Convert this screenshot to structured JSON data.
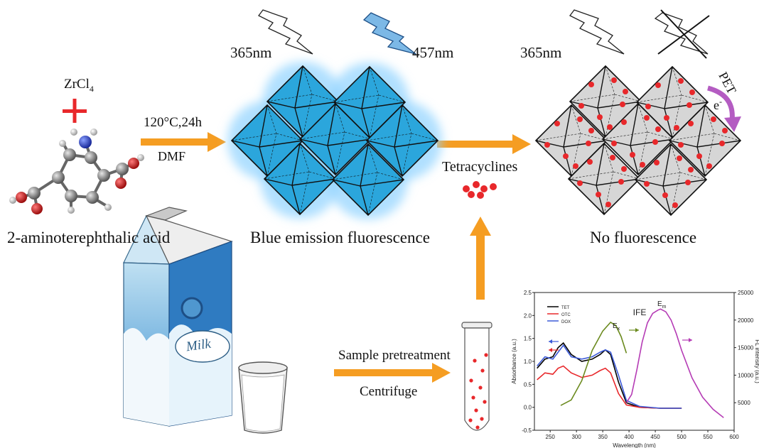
{
  "synthesis": {
    "reagent": "ZrCl",
    "reagent_sub": "4",
    "ligand_label": "2-aminoterephthalic acid",
    "condition": "120°C,24h",
    "solvent": "DMF"
  },
  "mof": {
    "excitation_left": "365nm",
    "emission": "457nm",
    "caption": "Blue emission fluorescence",
    "color": "#2ba6dc"
  },
  "analyte": {
    "label": "Tetracyclines",
    "color": "#e8282b"
  },
  "quenched": {
    "excitation": "365nm",
    "caption": "No fluorescence",
    "pet_label": "PET",
    "electron_label": "e",
    "electron_sup": "-",
    "color": "#d6d6d6"
  },
  "sample": {
    "milk_label": "Milk",
    "step1": "Sample pretreatment",
    "step2": "Centrifuge"
  },
  "chart_data": {
    "type": "line",
    "title": "IFE",
    "xlabel": "Wavelength (nm)",
    "ylabel_left": "Absorbance (a.u.)",
    "ylabel_right": "FL intensity (a.u.)",
    "xlim": [
      220,
      600
    ],
    "ylim_left": [
      -0.5,
      2.5
    ],
    "ylim_right": [
      0,
      25000
    ],
    "x_ticks": [
      "250",
      "300",
      "350",
      "400",
      "450",
      "500",
      "550",
      "600"
    ],
    "y_ticks_left": [
      "-0.5",
      "0.0",
      "0.5",
      "1.0",
      "1.5",
      "2.0",
      "2.5"
    ],
    "y_ticks_right": [
      "5000",
      "10000",
      "15000",
      "20000",
      "25000"
    ],
    "annotations": {
      "ex": "E",
      "ex_sub": "x",
      "em": "E",
      "em_sub": "m"
    },
    "legend_position": "top-left",
    "series": [
      {
        "name": "TET",
        "color": "#000000",
        "axis": "left",
        "x": [
          225,
          240,
          255,
          265,
          275,
          290,
          310,
          330,
          345,
          355,
          365,
          380,
          395,
          420,
          460,
          500
        ],
        "y": [
          0.85,
          1.05,
          1.1,
          1.3,
          1.4,
          1.15,
          1.0,
          1.05,
          1.15,
          1.25,
          1.15,
          0.55,
          0.1,
          0.0,
          -0.02,
          -0.02
        ]
      },
      {
        "name": "OTC",
        "color": "#e8282b",
        "axis": "left",
        "x": [
          225,
          240,
          255,
          265,
          275,
          290,
          310,
          330,
          345,
          355,
          365,
          380,
          395,
          420,
          460,
          500
        ],
        "y": [
          0.6,
          0.75,
          0.72,
          0.85,
          0.9,
          0.75,
          0.65,
          0.7,
          0.8,
          0.85,
          0.75,
          0.3,
          0.05,
          0.0,
          -0.02,
          -0.02
        ]
      },
      {
        "name": "DOX",
        "color": "#3c5ad8",
        "axis": "left",
        "x": [
          225,
          240,
          255,
          265,
          275,
          290,
          310,
          330,
          345,
          355,
          365,
          380,
          395,
          420,
          460,
          500
        ],
        "y": [
          0.9,
          1.1,
          1.05,
          1.2,
          1.35,
          1.1,
          1.05,
          1.1,
          1.2,
          1.25,
          1.2,
          0.7,
          0.15,
          0.02,
          -0.02,
          -0.02
        ]
      },
      {
        "name": "",
        "color": "#6b8a1e",
        "axis": "right",
        "x": [
          270,
          290,
          310,
          330,
          350,
          365,
          375,
          385,
          395
        ],
        "y": [
          4500,
          5500,
          9000,
          14500,
          18000,
          19600,
          19000,
          17000,
          14000
        ]
      },
      {
        "name": "",
        "color": "#b53cb5",
        "axis": "right",
        "x": [
          395,
          405,
          415,
          425,
          435,
          445,
          455,
          460,
          470,
          480,
          490,
          500,
          520,
          540,
          560,
          580
        ],
        "y": [
          5000,
          6500,
          11000,
          16000,
          19500,
          21200,
          21800,
          22000,
          21500,
          20000,
          17500,
          14500,
          9500,
          6000,
          3800,
          2300
        ]
      }
    ]
  }
}
